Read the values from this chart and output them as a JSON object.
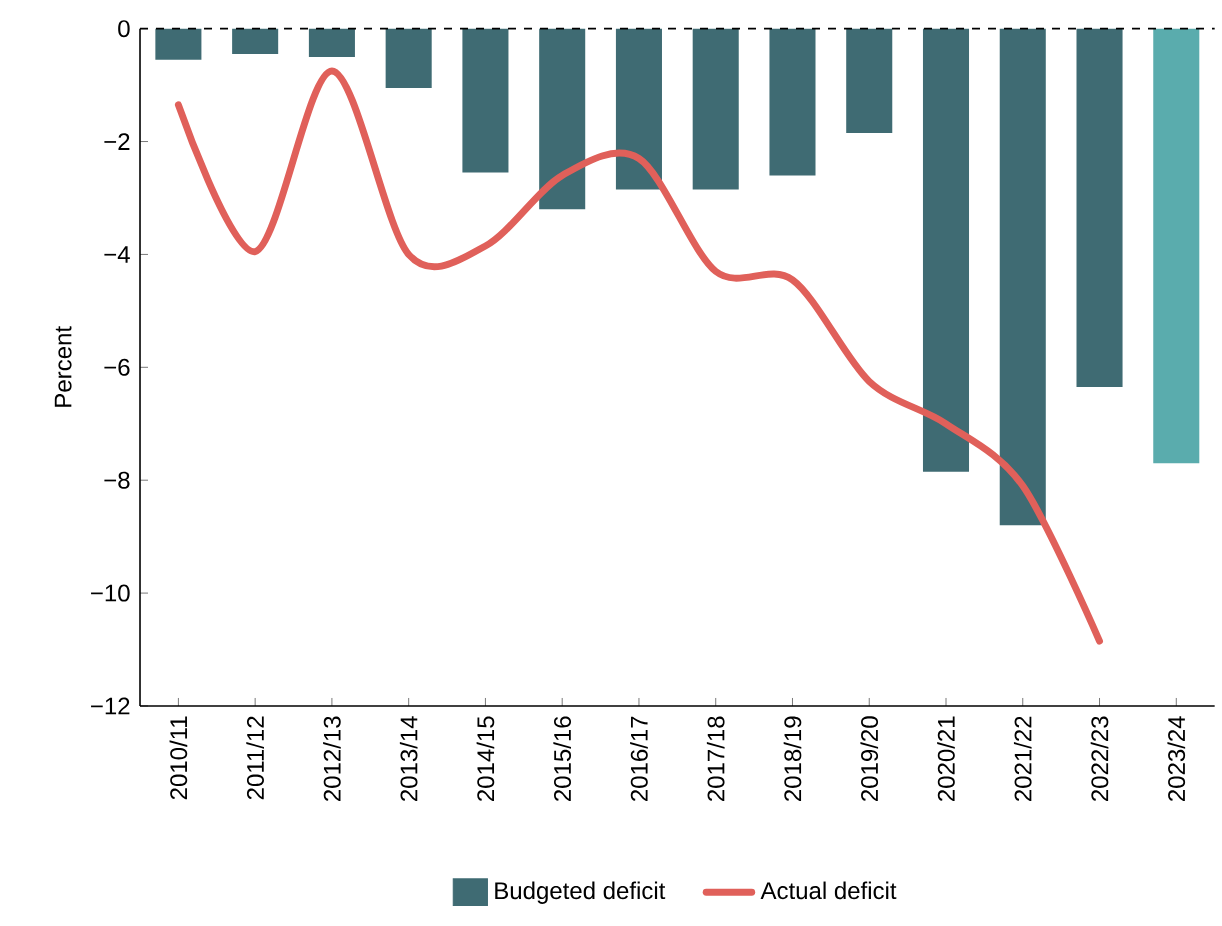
{
  "chart_data": {
    "type": "bar",
    "ylabel": "Percent",
    "categories": [
      "2010/11",
      "2011/12",
      "2012/13",
      "2013/14",
      "2014/15",
      "2015/16",
      "2016/17",
      "2017/18",
      "2018/19",
      "2019/20",
      "2020/21",
      "2021/22",
      "2022/23",
      "2023/24"
    ],
    "series": [
      {
        "name": "Budgeted deficit",
        "color": "#3f6b73",
        "colors": [
          "#3f6b73",
          "#3f6b73",
          "#3f6b73",
          "#3f6b73",
          "#3f6b73",
          "#3f6b73",
          "#3f6b73",
          "#3f6b73",
          "#3f6b73",
          "#3f6b73",
          "#3f6b73",
          "#3f6b73",
          "#3f6b73",
          "#5aacad"
        ],
        "values": [
          -0.55,
          -0.45,
          -0.5,
          -1.05,
          -2.55,
          -3.2,
          -2.85,
          -2.85,
          -2.6,
          -1.85,
          -7.85,
          -8.8,
          -6.35,
          -7.7
        ]
      },
      {
        "name": "Actual deficit",
        "type": "line",
        "color": "#e0605a",
        "line_style": "solid",
        "values": [
          -1.35,
          -3.95,
          -0.75,
          -4.0,
          -3.85,
          -2.6,
          -2.3,
          -4.3,
          -4.45,
          -6.25,
          -7.0,
          -8.1,
          -10.85,
          null
        ]
      }
    ],
    "ylim": [
      -12,
      0
    ],
    "yticks": [
      {
        "value": -12,
        "label": "−12"
      },
      {
        "value": -10,
        "label": "−10"
      },
      {
        "value": -8,
        "label": "−8"
      },
      {
        "value": -6,
        "label": "−6"
      },
      {
        "value": -4,
        "label": "−4"
      },
      {
        "value": -2,
        "label": "−2"
      },
      0
    ],
    "ref_lines": [
      {
        "axis": "y",
        "value": 0,
        "line_style": "dashed",
        "color": "#000000"
      }
    ],
    "legend": "bottom",
    "marker": "none"
  }
}
